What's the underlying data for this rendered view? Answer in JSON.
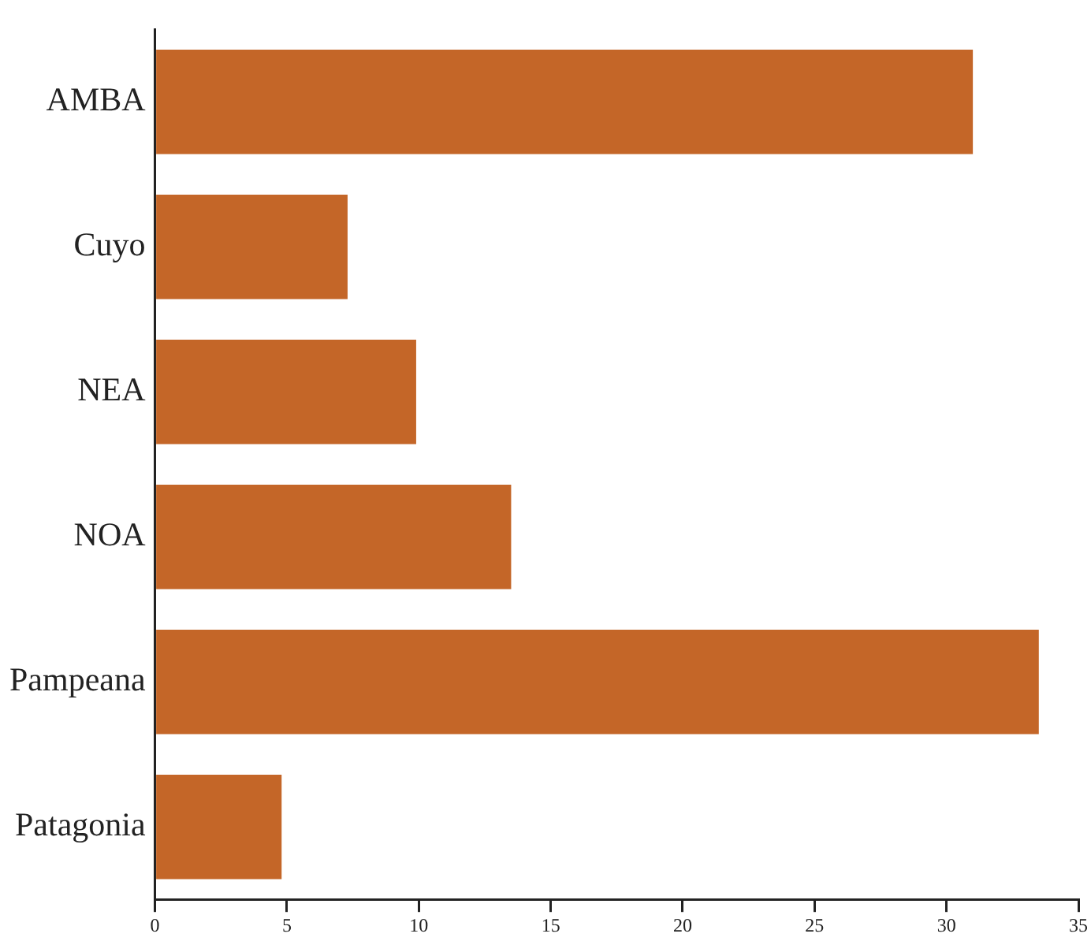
{
  "chart_data": {
    "type": "bar",
    "orientation": "horizontal",
    "categories": [
      "AMBA",
      "Cuyo",
      "NEA",
      "NOA",
      "Pampeana",
      "Patagonia"
    ],
    "values": [
      31.0,
      7.3,
      9.9,
      13.5,
      33.5,
      4.8
    ],
    "color": "#c46628",
    "xlim": [
      0,
      35
    ],
    "xticks": [
      0,
      5,
      10,
      15,
      20,
      25,
      30,
      35
    ],
    "grid": false,
    "legend": false
  }
}
